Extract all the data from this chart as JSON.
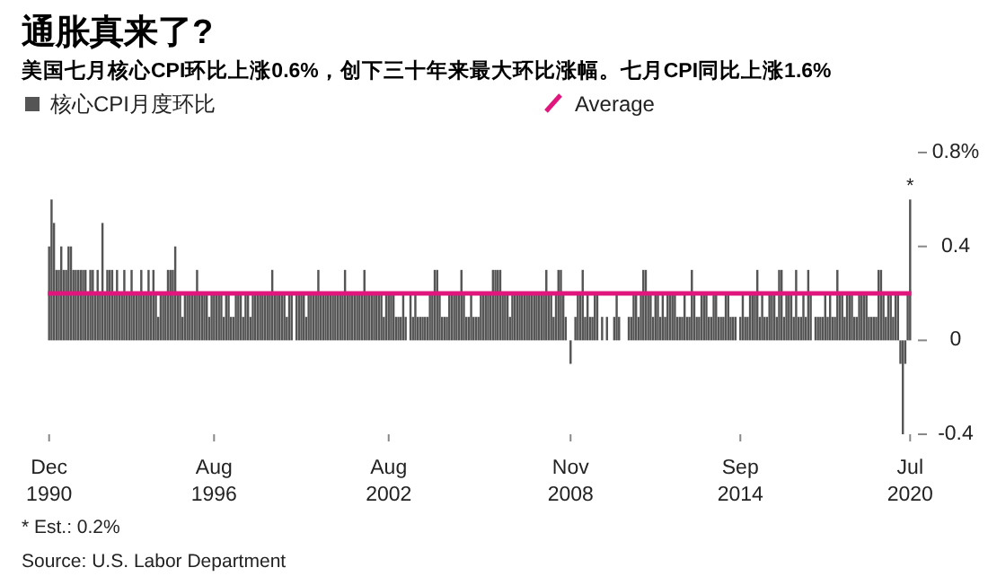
{
  "chart_data": {
    "type": "bar",
    "title": "通胀真来了?",
    "subtitle": "美国七月核心CPI环比上涨0.6%，创下三十年来最大环比涨幅。七月CPI同比上涨1.6%",
    "legend": "top",
    "x": [
      "1990-12",
      "1991-01",
      "1991-02",
      "1991-03",
      "1991-04",
      "1991-05",
      "1991-06",
      "1991-07",
      "1991-08",
      "1991-09",
      "1991-10",
      "1991-11",
      "1991-12",
      "1992-01",
      "1992-02",
      "1992-03",
      "1992-04",
      "1992-05",
      "1992-06",
      "1992-07",
      "1992-08",
      "1992-09",
      "1992-10",
      "1992-11",
      "1992-12",
      "1993-01",
      "1993-02",
      "1993-03",
      "1993-04",
      "1993-05",
      "1993-06",
      "1993-07",
      "1993-08",
      "1993-09",
      "1993-10",
      "1993-11",
      "1993-12",
      "1994-01",
      "1994-02",
      "1994-03",
      "1994-04",
      "1994-05",
      "1994-06",
      "1994-07",
      "1994-08",
      "1994-09",
      "1994-10",
      "1994-11",
      "1994-12",
      "1995-01",
      "1995-02",
      "1995-03",
      "1995-04",
      "1995-05",
      "1995-06",
      "1995-07",
      "1995-08",
      "1995-09",
      "1995-10",
      "1995-11",
      "1995-12",
      "1996-01",
      "1996-02",
      "1996-03",
      "1996-04",
      "1996-05",
      "1996-06",
      "1996-07",
      "1996-08",
      "1996-09",
      "1996-10",
      "1996-11",
      "1996-12",
      "1997-01",
      "1997-02",
      "1997-03",
      "1997-04",
      "1997-05",
      "1997-06",
      "1997-07",
      "1997-08",
      "1997-09",
      "1997-10",
      "1997-11",
      "1997-12",
      "1998-01",
      "1998-02",
      "1998-03",
      "1998-04",
      "1998-05",
      "1998-06",
      "1998-07",
      "1998-08",
      "1998-09",
      "1998-10",
      "1998-11",
      "1998-12",
      "1999-01",
      "1999-02",
      "1999-03",
      "1999-04",
      "1999-05",
      "1999-06",
      "1999-07",
      "1999-08",
      "1999-09",
      "1999-10",
      "1999-11",
      "1999-12",
      "2000-01",
      "2000-02",
      "2000-03",
      "2000-04",
      "2000-05",
      "2000-06",
      "2000-07",
      "2000-08",
      "2000-09",
      "2000-10",
      "2000-11",
      "2000-12",
      "2001-01",
      "2001-02",
      "2001-03",
      "2001-04",
      "2001-05",
      "2001-06",
      "2001-07",
      "2001-08",
      "2001-09",
      "2001-10",
      "2001-11",
      "2001-12",
      "2002-01",
      "2002-02",
      "2002-03",
      "2002-04",
      "2002-05",
      "2002-06",
      "2002-07",
      "2002-08",
      "2002-09",
      "2002-10",
      "2002-11",
      "2002-12",
      "2003-01",
      "2003-02",
      "2003-03",
      "2003-04",
      "2003-05",
      "2003-06",
      "2003-07",
      "2003-08",
      "2003-09",
      "2003-10",
      "2003-11",
      "2003-12",
      "2004-01",
      "2004-02",
      "2004-03",
      "2004-04",
      "2004-05",
      "2004-06",
      "2004-07",
      "2004-08",
      "2004-09",
      "2004-10",
      "2004-11",
      "2004-12",
      "2005-01",
      "2005-02",
      "2005-03",
      "2005-04",
      "2005-05",
      "2005-06",
      "2005-07",
      "2005-08",
      "2005-09",
      "2005-10",
      "2005-11",
      "2005-12",
      "2006-01",
      "2006-02",
      "2006-03",
      "2006-04",
      "2006-05",
      "2006-06",
      "2006-07",
      "2006-08",
      "2006-09",
      "2006-10",
      "2006-11",
      "2006-12",
      "2007-01",
      "2007-02",
      "2007-03",
      "2007-04",
      "2007-05",
      "2007-06",
      "2007-07",
      "2007-08",
      "2007-09",
      "2007-10",
      "2007-11",
      "2007-12",
      "2008-01",
      "2008-02",
      "2008-03",
      "2008-04",
      "2008-05",
      "2008-06",
      "2008-07",
      "2008-08",
      "2008-09",
      "2008-10",
      "2008-11",
      "2008-12",
      "2009-01",
      "2009-02",
      "2009-03",
      "2009-04",
      "2009-05",
      "2009-06",
      "2009-07",
      "2009-08",
      "2009-09",
      "2009-10",
      "2009-11",
      "2009-12",
      "2010-01",
      "2010-02",
      "2010-03",
      "2010-04",
      "2010-05",
      "2010-06",
      "2010-07",
      "2010-08",
      "2010-09",
      "2010-10",
      "2010-11",
      "2010-12",
      "2011-01",
      "2011-02",
      "2011-03",
      "2011-04",
      "2011-05",
      "2011-06",
      "2011-07",
      "2011-08",
      "2011-09",
      "2011-10",
      "2011-11",
      "2011-12",
      "2012-01",
      "2012-02",
      "2012-03",
      "2012-04",
      "2012-05",
      "2012-06",
      "2012-07",
      "2012-08",
      "2012-09",
      "2012-10",
      "2012-11",
      "2012-12",
      "2013-01",
      "2013-02",
      "2013-03",
      "2013-04",
      "2013-05",
      "2013-06",
      "2013-07",
      "2013-08",
      "2013-09",
      "2013-10",
      "2013-11",
      "2013-12",
      "2014-01",
      "2014-02",
      "2014-03",
      "2014-04",
      "2014-05",
      "2014-06",
      "2014-07",
      "2014-08",
      "2014-09",
      "2014-10",
      "2014-11",
      "2014-12",
      "2015-01",
      "2015-02",
      "2015-03",
      "2015-04",
      "2015-05",
      "2015-06",
      "2015-07",
      "2015-08",
      "2015-09",
      "2015-10",
      "2015-11",
      "2015-12",
      "2016-01",
      "2016-02",
      "2016-03",
      "2016-04",
      "2016-05",
      "2016-06",
      "2016-07",
      "2016-08",
      "2016-09",
      "2016-10",
      "2016-11",
      "2016-12",
      "2017-01",
      "2017-02",
      "2017-03",
      "2017-04",
      "2017-05",
      "2017-06",
      "2017-07",
      "2017-08",
      "2017-09",
      "2017-10",
      "2017-11",
      "2017-12",
      "2018-01",
      "2018-02",
      "2018-03",
      "2018-04",
      "2018-05",
      "2018-06",
      "2018-07",
      "2018-08",
      "2018-09",
      "2018-10",
      "2018-11",
      "2018-12",
      "2019-01",
      "2019-02",
      "2019-03",
      "2019-04",
      "2019-05",
      "2019-06",
      "2019-07",
      "2019-08",
      "2019-09",
      "2019-10",
      "2019-11",
      "2019-12",
      "2020-01",
      "2020-02",
      "2020-03",
      "2020-04",
      "2020-05",
      "2020-06",
      "2020-07"
    ],
    "series": [
      {
        "name": "核心CPI月度环比",
        "color": "#555555",
        "values": [
          0.4,
          0.6,
          0.5,
          0.3,
          0.3,
          0.4,
          0.3,
          0.3,
          0.4,
          0.4,
          0.3,
          0.3,
          0.3,
          0.3,
          0.3,
          0.3,
          0.2,
          0.3,
          0.3,
          0.2,
          0.3,
          0.2,
          0.5,
          0.2,
          0.3,
          0.3,
          0.3,
          0.2,
          0.3,
          0.2,
          0.2,
          0.3,
          0.2,
          0.2,
          0.3,
          0.2,
          0.2,
          0.2,
          0.3,
          0.2,
          0.2,
          0.3,
          0.2,
          0.3,
          0.2,
          0.1,
          0.2,
          0.2,
          0.2,
          0.3,
          0.3,
          0.3,
          0.4,
          0.2,
          0.2,
          0.1,
          0.2,
          0.2,
          0.2,
          0.2,
          0.2,
          0.3,
          0.2,
          0.2,
          0.2,
          0.2,
          0.1,
          0.2,
          0.2,
          0.2,
          0.2,
          0.2,
          0.1,
          0.2,
          0.2,
          0.1,
          0.1,
          0.2,
          0.2,
          0.2,
          0.1,
          0.2,
          0.2,
          0.1,
          0.2,
          0.2,
          0.2,
          0.2,
          0.2,
          0.2,
          0.2,
          0.2,
          0.3,
          0.2,
          0.2,
          0.2,
          0.2,
          0.2,
          0.1,
          0.2,
          0.2,
          0.0,
          0.2,
          0.2,
          0.2,
          0.2,
          0.1,
          0.2,
          0.2,
          0.2,
          0.2,
          0.3,
          0.2,
          0.2,
          0.2,
          0.2,
          0.2,
          0.2,
          0.2,
          0.2,
          0.2,
          0.2,
          0.3,
          0.2,
          0.2,
          0.2,
          0.2,
          0.2,
          0.2,
          0.2,
          0.3,
          0.2,
          0.2,
          0.2,
          0.2,
          0.2,
          0.2,
          0.2,
          0.1,
          0.2,
          0.2,
          0.2,
          0.2,
          0.1,
          0.1,
          0.1,
          0.2,
          0.1,
          0.0,
          0.2,
          0.1,
          0.2,
          0.1,
          0.1,
          0.1,
          0.1,
          0.1,
          0.2,
          0.2,
          0.3,
          0.3,
          0.2,
          0.1,
          0.1,
          0.1,
          0.2,
          0.2,
          0.2,
          0.2,
          0.2,
          0.3,
          0.2,
          0.1,
          0.1,
          0.2,
          0.1,
          0.1,
          0.1,
          0.2,
          0.2,
          0.2,
          0.2,
          0.2,
          0.3,
          0.3,
          0.3,
          0.3,
          0.2,
          0.2,
          0.2,
          0.1,
          0.2,
          0.2,
          0.2,
          0.2,
          0.2,
          0.2,
          0.2,
          0.2,
          0.2,
          0.2,
          0.2,
          0.2,
          0.2,
          0.2,
          0.3,
          0.2,
          0.2,
          0.1,
          0.2,
          0.3,
          0.3,
          0.2,
          0.1,
          0.0,
          -0.1,
          0.0,
          0.1,
          0.2,
          0.2,
          0.3,
          0.1,
          0.2,
          0.1,
          0.1,
          0.2,
          0.2,
          0.0,
          0.1,
          0.0,
          0.1,
          0.0,
          0.0,
          0.1,
          0.2,
          0.1,
          0.0,
          0.0,
          0.0,
          0.1,
          0.1,
          0.2,
          0.2,
          0.1,
          0.2,
          0.3,
          0.3,
          0.2,
          0.2,
          0.1,
          0.2,
          0.2,
          0.1,
          0.2,
          0.1,
          0.2,
          0.2,
          0.2,
          0.2,
          0.1,
          0.1,
          0.1,
          0.2,
          0.1,
          0.1,
          0.3,
          0.2,
          0.1,
          0.1,
          0.2,
          0.2,
          0.2,
          0.1,
          0.1,
          0.2,
          0.2,
          0.1,
          0.1,
          0.1,
          0.2,
          0.2,
          0.1,
          0.1,
          0.1,
          0.0,
          0.1,
          0.2,
          0.1,
          0.1,
          0.2,
          0.2,
          0.2,
          0.3,
          0.1,
          0.2,
          0.1,
          0.1,
          0.2,
          0.2,
          0.2,
          0.1,
          0.3,
          0.3,
          0.1,
          0.2,
          0.2,
          0.2,
          0.1,
          0.3,
          0.1,
          0.1,
          0.2,
          0.1,
          0.3,
          0.2,
          0.0,
          0.1,
          0.1,
          0.1,
          0.1,
          0.2,
          0.1,
          0.2,
          0.1,
          0.1,
          0.3,
          0.2,
          0.2,
          0.1,
          0.2,
          0.2,
          0.2,
          0.1,
          0.1,
          0.2,
          0.2,
          0.2,
          0.2,
          0.1,
          0.1,
          0.1,
          0.1,
          0.3,
          0.3,
          0.2,
          0.1,
          0.2,
          0.2,
          0.1,
          0.2,
          0.2,
          -0.1,
          -0.4,
          -0.1,
          0.2,
          0.6
        ]
      }
    ],
    "xlim": [
      "1990-11",
      "2020-08"
    ],
    "xticks": [
      {
        "value": "1990-12",
        "label": "Dec 1990"
      },
      {
        "value": "1996-08",
        "label": "Aug 1996"
      },
      {
        "value": "2002-08",
        "label": "Aug 2002"
      },
      {
        "value": "2008-11",
        "label": "Nov 2008"
      },
      {
        "value": "2014-09",
        "label": "Sep 2014"
      },
      {
        "value": "2020-07",
        "label": "Jul 2020"
      }
    ],
    "ylim": [
      -0.4,
      0.8
    ],
    "yticks": [
      {
        "value": 0.8,
        "label": "0.8%"
      },
      0.4,
      0,
      -0.4
    ],
    "ref_lines": [
      {
        "axis": "y",
        "value": 0.2,
        "label": "Average",
        "color": "#e0167d"
      }
    ],
    "annotations": [
      {
        "text": "*",
        "x": "2020-07",
        "y": 0.6
      },
      "* Est.: 0.2%",
      "Source: U.S. Labor Department"
    ]
  }
}
